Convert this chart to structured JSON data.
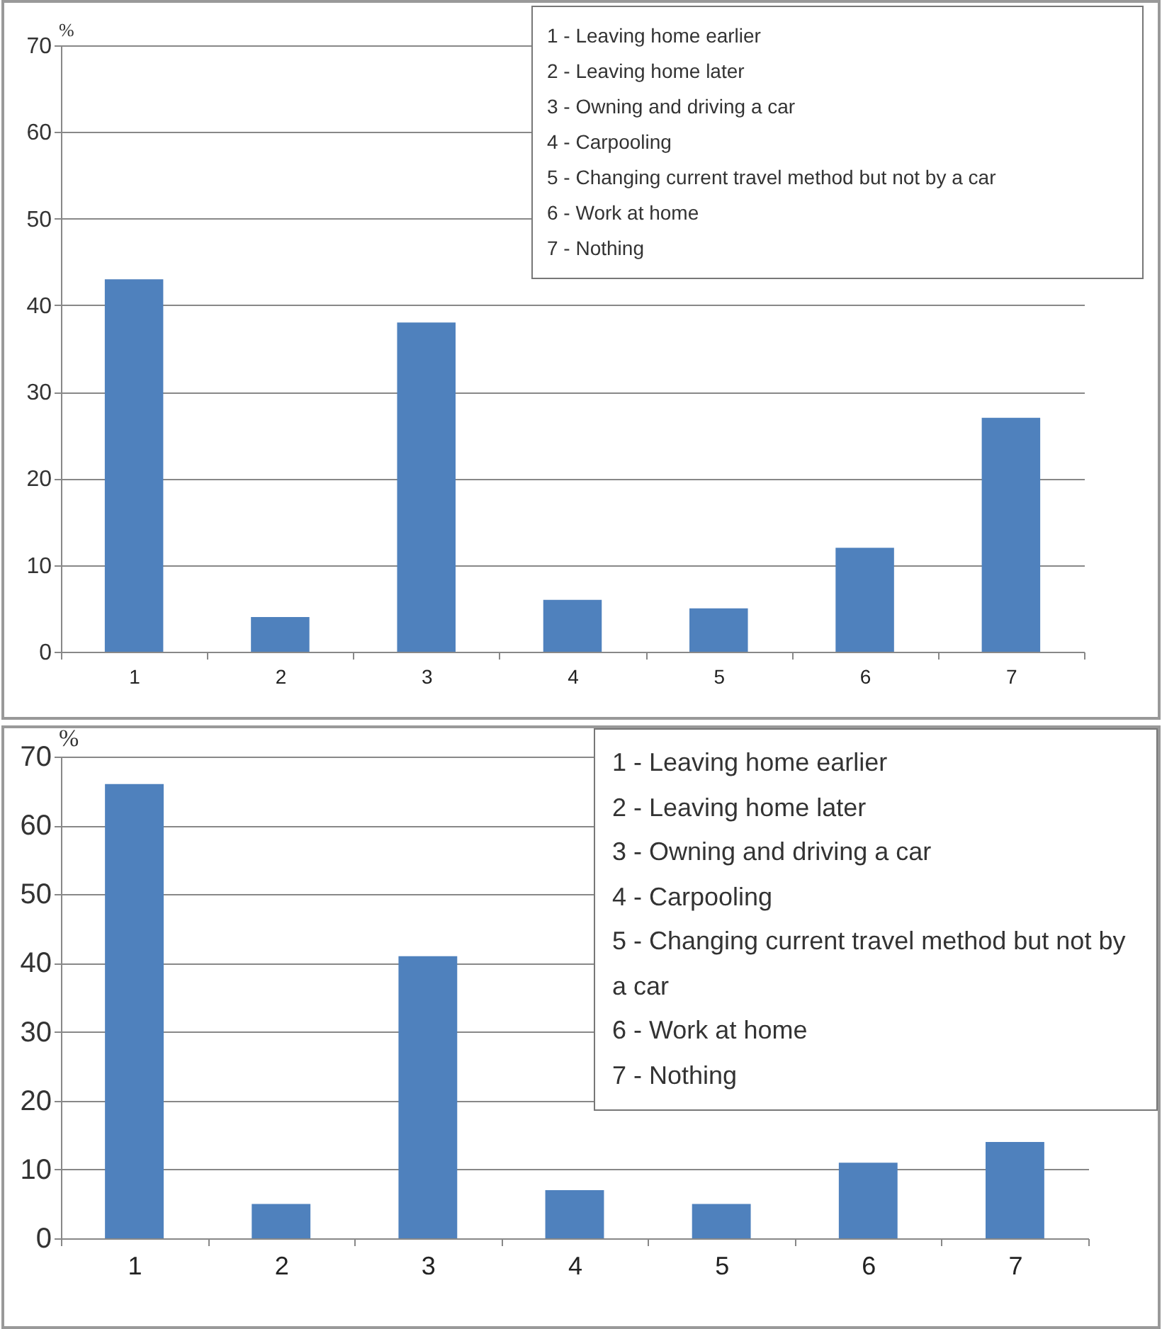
{
  "chart_data": [
    {
      "type": "bar",
      "ylabel": "%",
      "categories": [
        "1",
        "2",
        "3",
        "4",
        "5",
        "6",
        "7"
      ],
      "values": [
        43,
        4,
        38,
        6,
        5,
        12,
        27
      ],
      "color": "#4f81bd",
      "ylim": [
        0,
        70
      ],
      "yticks": [
        0,
        10,
        20,
        30,
        40,
        50,
        60,
        70
      ],
      "grid": "y",
      "annotations": [
        "1 - Leaving home earlier",
        "2 - Leaving home later",
        "3 - Owning and driving a car",
        "4 - Carpooling",
        "5 - Changing current travel method but not by a car",
        "6 - Work at home",
        "7 - Nothing"
      ]
    },
    {
      "type": "bar",
      "ylabel": "%",
      "categories": [
        "1",
        "2",
        "3",
        "4",
        "5",
        "6",
        "7"
      ],
      "values": [
        66,
        5,
        41,
        7,
        5,
        11,
        14
      ],
      "color": "#4f81bd",
      "ylim": [
        0,
        70
      ],
      "yticks": [
        0,
        10,
        20,
        30,
        40,
        50,
        60,
        70
      ],
      "grid": "y",
      "annotations": [
        "1 - Leaving home earlier",
        "2 - Leaving home later",
        "3 - Owning and driving a car",
        "4 - Carpooling",
        "5 - Changing current travel method but not by a car",
        "6 - Work at home",
        "7 - Nothing"
      ]
    }
  ]
}
